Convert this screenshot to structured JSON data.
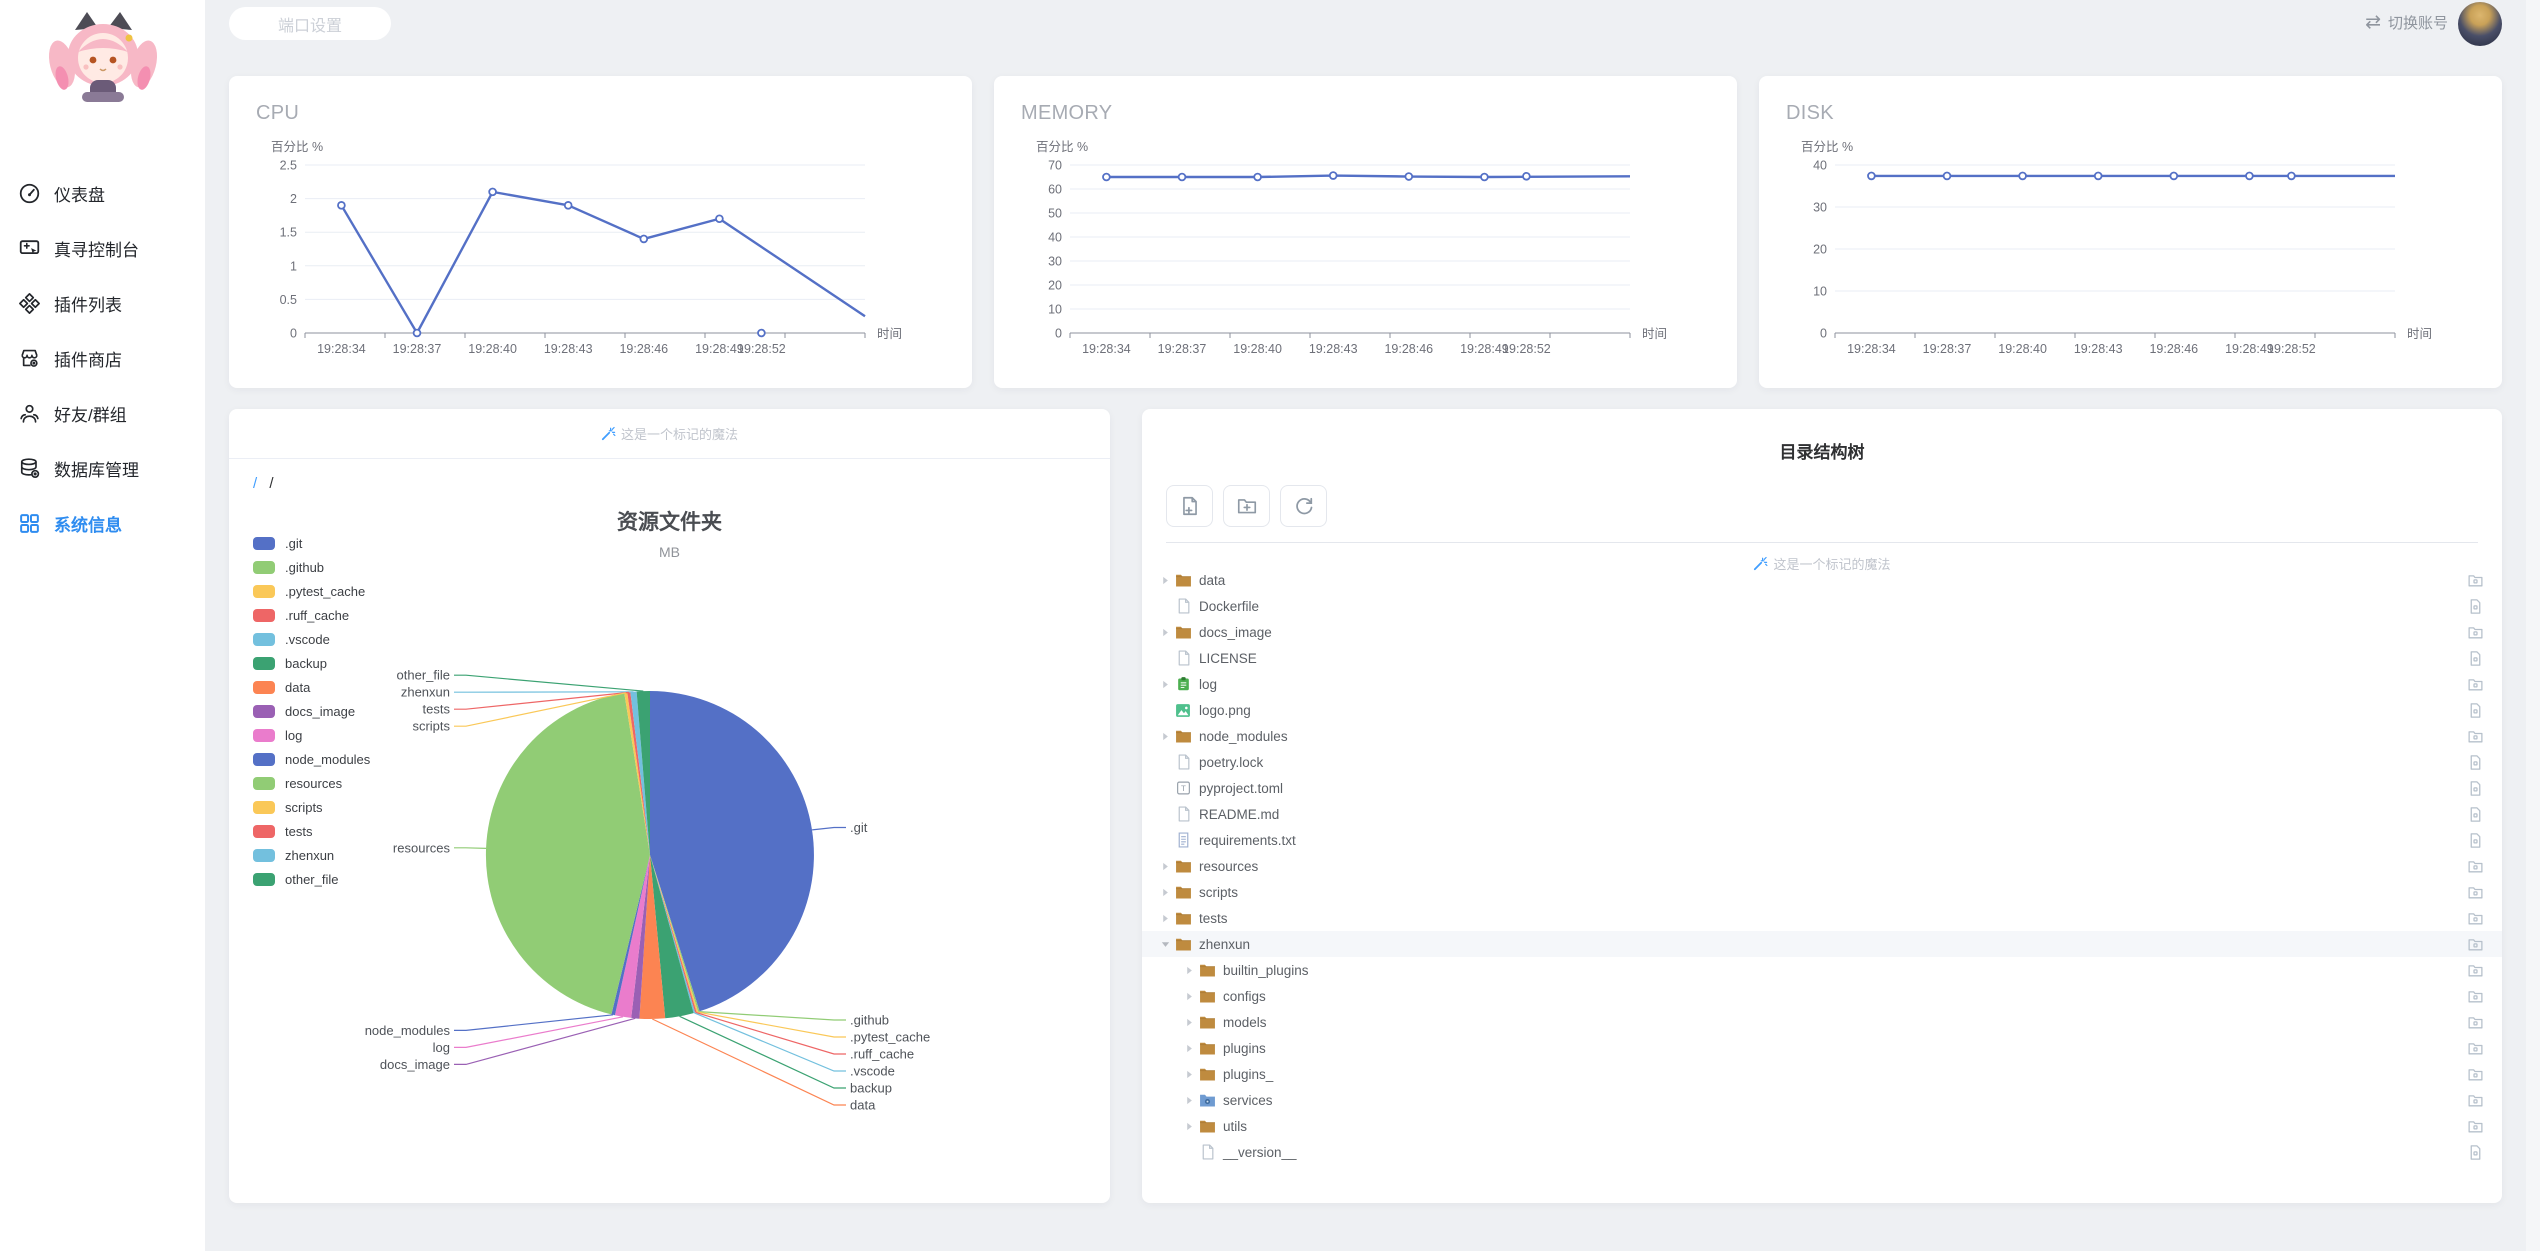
{
  "topbar": {
    "port_button": "端口设置",
    "switch_account": "切换账号"
  },
  "sidebar": {
    "items": [
      {
        "label": "仪表盘",
        "icon": "gauge",
        "active": false
      },
      {
        "label": "真寻控制台",
        "icon": "console",
        "active": false
      },
      {
        "label": "插件列表",
        "icon": "plugins",
        "active": false
      },
      {
        "label": "插件商店",
        "icon": "store",
        "active": false
      },
      {
        "label": "好友/群组",
        "icon": "friends",
        "active": false
      },
      {
        "label": "数据库管理",
        "icon": "database",
        "active": false
      },
      {
        "label": "系统信息",
        "icon": "grid",
        "active": true
      }
    ]
  },
  "charts": {
    "unit_label": "百分比 %",
    "time_label": "时间",
    "line_color": "#5470c6",
    "x": [
      "19:28:34",
      "19:28:37",
      "19:28:40",
      "19:28:43",
      "19:28:46",
      "19:28:49",
      "19:28:52"
    ],
    "items": [
      {
        "id": "cpu",
        "title": "CPU",
        "ymax": 2.5,
        "yticks": [
          "2.5",
          "2",
          "1.5",
          "1",
          "0.5",
          "0"
        ],
        "values": [
          1.9,
          0,
          2.1,
          1.9,
          1.4,
          1.7,
          0
        ],
        "tail": 0.25
      },
      {
        "id": "memory",
        "title": "MEMORY",
        "ymax": 70,
        "yticks": [
          "70",
          "60",
          "50",
          "40",
          "30",
          "20",
          "10",
          "0"
        ],
        "values": [
          65,
          65,
          65,
          65.6,
          65.2,
          65,
          65.3
        ],
        "tail": 65.3
      },
      {
        "id": "disk",
        "title": "DISK",
        "ymax": 40,
        "yticks": [
          "40",
          "30",
          "20",
          "10",
          "0"
        ],
        "values": [
          37.4,
          37.4,
          37.4,
          37.4,
          37.4,
          37.4,
          37.4
        ],
        "tail": 37.4
      }
    ]
  },
  "pie": {
    "watermark": "这是一个标记的魔法",
    "breadcrumb_root": "/",
    "breadcrumb_current": "/",
    "title": "资源文件夹",
    "unit": "MB",
    "slices": [
      {
        "name": ".git",
        "pct": 45.0,
        "color": "#5470C6"
      },
      {
        "name": ".github",
        "pct": 0.15,
        "color": "#91CC75"
      },
      {
        "name": ".pytest_cache",
        "pct": 0.15,
        "color": "#FAC858"
      },
      {
        "name": ".ruff_cache",
        "pct": 0.15,
        "color": "#EE6666"
      },
      {
        "name": ".vscode",
        "pct": 0.15,
        "color": "#73C0DE"
      },
      {
        "name": "backup",
        "pct": 2.8,
        "color": "#3BA272"
      },
      {
        "name": "data",
        "pct": 2.5,
        "color": "#FC8452"
      },
      {
        "name": "docs_image",
        "pct": 0.8,
        "color": "#9A60B4"
      },
      {
        "name": "log",
        "pct": 1.6,
        "color": "#EA7CCC"
      },
      {
        "name": "node_modules",
        "pct": 0.35,
        "color": "#5470C6"
      },
      {
        "name": "resources",
        "pct": 43.6,
        "color": "#91CC75"
      },
      {
        "name": "scripts",
        "pct": 0.3,
        "color": "#FAC858"
      },
      {
        "name": "tests",
        "pct": 0.3,
        "color": "#EE6666"
      },
      {
        "name": "zhenxun",
        "pct": 0.6,
        "color": "#73C0DE"
      },
      {
        "name": "other_file",
        "pct": 1.3,
        "color": "#3BA272"
      }
    ]
  },
  "tree": {
    "title": "目录结构树",
    "watermark": "这是一个标记的魔法",
    "toolbar": [
      {
        "name": "new-file"
      },
      {
        "name": "new-folder"
      },
      {
        "name": "refresh"
      }
    ],
    "rows": [
      {
        "name": "data",
        "type": "folder",
        "level": 0
      },
      {
        "name": "Dockerfile",
        "type": "file",
        "level": 0
      },
      {
        "name": "docs_image",
        "type": "folder",
        "level": 0
      },
      {
        "name": "LICENSE",
        "type": "file",
        "level": 0
      },
      {
        "name": "log",
        "type": "log",
        "level": 0
      },
      {
        "name": "logo.png",
        "type": "image",
        "level": 0
      },
      {
        "name": "node_modules",
        "type": "folder",
        "level": 0
      },
      {
        "name": "poetry.lock",
        "type": "file",
        "level": 0
      },
      {
        "name": "pyproject.toml",
        "type": "toml",
        "level": 0
      },
      {
        "name": "README.md",
        "type": "file",
        "level": 0
      },
      {
        "name": "requirements.txt",
        "type": "txt",
        "level": 0
      },
      {
        "name": "resources",
        "type": "folder",
        "level": 0
      },
      {
        "name": "scripts",
        "type": "folder",
        "level": 0
      },
      {
        "name": "tests",
        "type": "folder",
        "level": 0
      },
      {
        "name": "zhenxun",
        "type": "folder",
        "level": 0,
        "expanded": true,
        "selected": true
      },
      {
        "name": "builtin_plugins",
        "type": "folder",
        "level": 1
      },
      {
        "name": "configs",
        "type": "folder",
        "level": 1
      },
      {
        "name": "models",
        "type": "folder",
        "level": 1
      },
      {
        "name": "plugins",
        "type": "folder",
        "level": 1
      },
      {
        "name": "plugins_",
        "type": "folder",
        "level": 1
      },
      {
        "name": "services",
        "type": "services",
        "level": 1
      },
      {
        "name": "utils",
        "type": "folder",
        "level": 1
      },
      {
        "name": "__version__",
        "type": "file",
        "level": 1
      }
    ]
  },
  "chart_data": [
    {
      "type": "line",
      "title": "CPU",
      "ylabel": "百分比 %",
      "xlabel": "时间",
      "x": [
        "19:28:34",
        "19:28:37",
        "19:28:40",
        "19:28:43",
        "19:28:46",
        "19:28:49",
        "19:28:52"
      ],
      "values": [
        1.9,
        0,
        2.1,
        1.9,
        1.4,
        1.7,
        0
      ],
      "ylim": [
        0,
        2.5
      ],
      "grid": true,
      "legend": "none"
    },
    {
      "type": "line",
      "title": "MEMORY",
      "ylabel": "百分比 %",
      "xlabel": "时间",
      "x": [
        "19:28:34",
        "19:28:37",
        "19:28:40",
        "19:28:43",
        "19:28:46",
        "19:28:49",
        "19:28:52"
      ],
      "values": [
        65,
        65,
        65,
        65.6,
        65.2,
        65,
        65.3
      ],
      "ylim": [
        0,
        70
      ],
      "grid": true,
      "legend": "none"
    },
    {
      "type": "line",
      "title": "DISK",
      "ylabel": "百分比 %",
      "xlabel": "时间",
      "x": [
        "19:28:34",
        "19:28:37",
        "19:28:40",
        "19:28:43",
        "19:28:46",
        "19:28:49",
        "19:28:52"
      ],
      "values": [
        37.4,
        37.4,
        37.4,
        37.4,
        37.4,
        37.4,
        37.4
      ],
      "ylim": [
        0,
        40
      ],
      "grid": true,
      "legend": "none"
    },
    {
      "type": "pie",
      "title": "资源文件夹",
      "unit": "MB",
      "legend_position": "left",
      "labels": [
        ".git",
        ".github",
        ".pytest_cache",
        ".ruff_cache",
        ".vscode",
        "backup",
        "data",
        "docs_image",
        "log",
        "node_modules",
        "resources",
        "scripts",
        "tests",
        "zhenxun",
        "other_file"
      ],
      "values_pct_est": [
        45.0,
        0.15,
        0.15,
        0.15,
        0.15,
        2.8,
        2.5,
        0.8,
        1.6,
        0.35,
        43.6,
        0.3,
        0.3,
        0.6,
        1.3
      ],
      "colors": [
        "#5470C6",
        "#91CC75",
        "#FAC858",
        "#EE6666",
        "#73C0DE",
        "#3BA272",
        "#FC8452",
        "#9A60B4",
        "#EA7CCC",
        "#5470C6",
        "#91CC75",
        "#FAC858",
        "#EE6666",
        "#73C0DE",
        "#3BA272"
      ]
    }
  ]
}
